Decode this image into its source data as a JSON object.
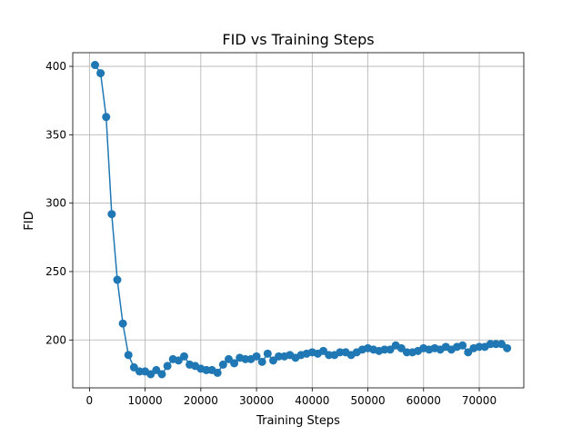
{
  "chart_data": {
    "type": "line",
    "title": "FID vs Training Steps",
    "xlabel": "Training Steps",
    "ylabel": "FID",
    "xlim": [
      -3000,
      78000
    ],
    "ylim": [
      165,
      410
    ],
    "xticks": [
      0,
      10000,
      20000,
      30000,
      40000,
      50000,
      60000,
      70000
    ],
    "yticks": [
      200,
      250,
      300,
      350,
      400
    ],
    "grid": true,
    "color": "#1f77b4",
    "marker": "circle",
    "series": [
      {
        "x": [
          1000,
          2000,
          3000,
          4000,
          5000,
          6000,
          7000,
          8000,
          9000,
          10000,
          11000,
          12000,
          13000,
          14000,
          15000,
          16000,
          17000,
          18000,
          19000,
          20000,
          21000,
          22000,
          23000,
          24000,
          25000,
          26000,
          27000,
          28000,
          29000,
          30000,
          31000,
          32000,
          33000,
          34000,
          35000,
          36000,
          37000,
          38000,
          39000,
          40000,
          41000,
          42000,
          43000,
          44000,
          45000,
          46000,
          47000,
          48000,
          49000,
          50000,
          51000,
          52000,
          53000,
          54000,
          55000,
          56000,
          57000,
          58000,
          59000,
          60000,
          61000,
          62000,
          63000,
          64000,
          65000,
          66000,
          67000,
          68000,
          69000,
          70000,
          71000,
          72000,
          73000,
          74000,
          75000
        ],
        "y": [
          401,
          395,
          363,
          292,
          244,
          212,
          189,
          180,
          177,
          177,
          175,
          178,
          175,
          181,
          186,
          185,
          188,
          182,
          181,
          179,
          178,
          178,
          176,
          182,
          186,
          183,
          187,
          186,
          186,
          188,
          184,
          190,
          185,
          188,
          188,
          189,
          187,
          189,
          190,
          191,
          190,
          192,
          189,
          189,
          191,
          191,
          189,
          191,
          193,
          194,
          193,
          192,
          193,
          193,
          196,
          194,
          191,
          191,
          192,
          194,
          193,
          194,
          193,
          195,
          193,
          195,
          196,
          191,
          194,
          195,
          195,
          197,
          197,
          197,
          194
        ]
      }
    ]
  }
}
